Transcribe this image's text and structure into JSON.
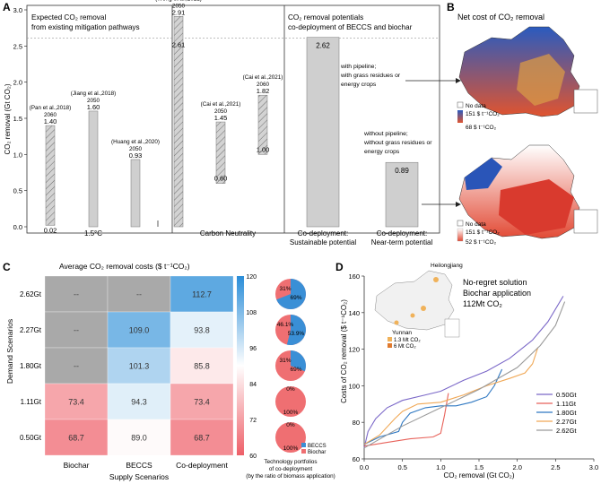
{
  "panel_labels": {
    "a": "A",
    "b": "B",
    "c": "C",
    "d": "D"
  },
  "panel_a": {
    "left_title_line1": "Expected CO₂ removal",
    "left_title_line2": "from existing mitigation pathways",
    "right_title_line1": "CO₂ removal potentials",
    "right_title_line2": "co-deployment of BECCS and biochar",
    "ylabel": "CO₂ removal (Gt CO₂)",
    "group_labels": [
      "1.5°C",
      "Carbon Neutrality",
      "Co-deployment:",
      "Sustainable potential",
      "Co-deployment:",
      "Near-term potential"
    ],
    "annotations": [
      {
        "text": "with pipeline;"
      },
      {
        "text": "with grass residues or"
      },
      {
        "text": "energy crops"
      },
      {
        "text": "without pipeline;"
      },
      {
        "text": "without grass residues or"
      },
      {
        "text": "energy crops"
      }
    ],
    "dashed_line_value": 2.61
  },
  "panel_b": {
    "title": "Net cost of CO₂ removal",
    "legend_top": [
      "No data",
      "151 $ t⁻¹CO₂",
      "68 $ t⁻¹CO₂"
    ],
    "legend_bottom": [
      "No data",
      "151 $ t⁻¹CO₂",
      "52 $ t⁻¹CO₂"
    ]
  },
  "panel_c": {
    "title": "Average CO₂ removal costs ($ t⁻¹CO₂)",
    "ylabel": "Demand Scenarios",
    "xlabel": "Supply Scenarios",
    "colorbar_ticks": [
      "120",
      "108",
      "96",
      "84",
      "72",
      "60"
    ],
    "pie_legend": [
      "BECCS",
      "Biochar"
    ],
    "pie_caption_line1": "Technology portfolios",
    "pie_caption_line2": "of co-deployment",
    "pie_caption_line3": "(by the ratio of biomass application)"
  },
  "panel_d": {
    "ylabel": "Costs of CO₂ removal ($ t⁻¹CO₂)",
    "xlabel": "CO₂ removal (Gt CO₂)",
    "inset_heilongjiang": "Heilongjiang",
    "inset_yunnan": "Yunnan",
    "inset_legend": [
      "1.3 Mt CO₂",
      "6 Mt CO₂"
    ],
    "noregret_line1": "No-regret solution",
    "noregret_line2": "Biochar application",
    "noregret_line3": "112Mt CO₂"
  },
  "colors": {
    "bar_gray": "#cfcfcf",
    "heat_gray": "#a9a9a9",
    "beccs": "#3a8fd6",
    "biochar": "#ef6f72",
    "line_050": "#7b68c8",
    "line_111": "#e8625a",
    "line_180": "#2f78c2",
    "line_227": "#f0a856",
    "line_262": "#9a9a9a"
  },
  "chart_data": [
    {
      "type": "bar",
      "id": "A",
      "ylabel": "CO₂ removal (Gt CO₂)",
      "ylim": [
        0,
        3.0
      ],
      "yticks": [
        0.0,
        0.5,
        1.0,
        1.5,
        2.0,
        2.5,
        3.0
      ],
      "bars": [
        {
          "label": "(Pan et al.,2018)",
          "year": "2060",
          "low": 0.02,
          "high": 1.4,
          "hatched": true,
          "low_label": "0.02",
          "high_label": "1.40"
        },
        {
          "label": "(Jiang et al.,2018)",
          "year": "2050",
          "low": 0.0,
          "high": 1.6,
          "hatched": false,
          "low_label": "",
          "high_label": "1.60"
        },
        {
          "label": "(Huang et al.,2020)",
          "year": "2050",
          "low": 0.0,
          "high": 0.93,
          "hatched": false,
          "low_label": "",
          "high_label": "0.93"
        },
        {
          "label": "(Weng et al.,2021)",
          "year": "2050",
          "low": 0.0,
          "high": 2.91,
          "hatched": true,
          "low_label": "",
          "high_label": "2.91",
          "mid_label": "2.61"
        },
        {
          "label": "(Cai et al.,2021)",
          "year": "2050",
          "low": 0.6,
          "high": 1.45,
          "hatched": true,
          "low_label": "0.60",
          "high_label": "1.45"
        },
        {
          "label": "(Cai et al.,2021)",
          "year": "2060",
          "low": 1.0,
          "high": 1.82,
          "hatched": true,
          "low_label": "1.00",
          "high_label": "1.82"
        },
        {
          "label": "",
          "year": "",
          "low": 0.0,
          "high": 2.62,
          "hatched": false,
          "low_label": "",
          "high_label": "2.62",
          "inside": true
        },
        {
          "label": "",
          "year": "",
          "low": 0.0,
          "high": 0.89,
          "hatched": false,
          "low_label": "",
          "high_label": "0.89",
          "inside": true
        }
      ]
    },
    {
      "type": "heatmap",
      "id": "C",
      "rows": [
        "2.62Gt",
        "2.27Gt",
        "1.80Gt",
        "1.11Gt",
        "0.50Gt"
      ],
      "columns": [
        "Biochar",
        "BECCS",
        "Co-deployment"
      ],
      "values": [
        [
          null,
          null,
          112.7
        ],
        [
          null,
          109.0,
          93.8
        ],
        [
          null,
          101.3,
          85.8
        ],
        [
          73.4,
          94.3,
          73.4
        ],
        [
          68.7,
          89.0,
          68.7
        ]
      ],
      "na_label": "--",
      "colorbar": {
        "min": 60,
        "max": 120
      }
    },
    {
      "type": "pie",
      "id": "C-pies",
      "series": [
        "BECCS",
        "Biochar"
      ],
      "pies": [
        {
          "beccs": 69,
          "biochar": 31,
          "labels": [
            "31%",
            "69%"
          ]
        },
        {
          "beccs": 53.9,
          "biochar": 46.1,
          "labels": [
            "46.1%",
            "53.9%"
          ]
        },
        {
          "beccs": 31,
          "biochar": 69,
          "labels": [
            "31%",
            "69%"
          ]
        },
        {
          "beccs": 0,
          "biochar": 100,
          "labels": [
            "0%",
            "100%"
          ]
        },
        {
          "beccs": 0,
          "biochar": 100,
          "labels": [
            "0%",
            "100%"
          ]
        }
      ]
    },
    {
      "type": "line",
      "id": "D",
      "xlabel": "CO₂ removal (Gt CO₂)",
      "ylabel": "Costs of CO₂ removal ($ t⁻¹CO₂)",
      "xlim": [
        0,
        3.0
      ],
      "ylim": [
        60,
        160
      ],
      "xticks": [
        0.0,
        0.5,
        1.0,
        1.5,
        2.0,
        2.5,
        3.0
      ],
      "yticks": [
        60,
        80,
        100,
        120,
        140,
        160
      ],
      "series": [
        {
          "name": "0.50Gt",
          "color": "#7b68c8",
          "points": [
            [
              0.0,
              66
            ],
            [
              0.05,
              75
            ],
            [
              0.15,
              82
            ],
            [
              0.3,
              88
            ],
            [
              0.5,
              92
            ],
            [
              0.8,
              95
            ],
            [
              1.0,
              97
            ],
            [
              1.1,
              99
            ],
            [
              1.3,
              103
            ],
            [
              1.6,
              108
            ],
            [
              1.9,
              115
            ],
            [
              2.2,
              125
            ],
            [
              2.4,
              135
            ],
            [
              2.6,
              149
            ]
          ]
        },
        {
          "name": "1.11Gt",
          "color": "#e8625a",
          "points": [
            [
              0.0,
              67
            ],
            [
              0.3,
              69
            ],
            [
              0.6,
              71
            ],
            [
              0.9,
              72
            ],
            [
              1.0,
              74
            ],
            [
              1.05,
              84
            ],
            [
              1.1,
              96
            ]
          ]
        },
        {
          "name": "1.80Gt",
          "color": "#2f78c2",
          "points": [
            [
              0.0,
              68
            ],
            [
              0.2,
              72
            ],
            [
              0.45,
              75
            ],
            [
              0.5,
              80
            ],
            [
              0.6,
              85
            ],
            [
              0.8,
              88
            ],
            [
              1.0,
              89
            ],
            [
              1.2,
              89
            ],
            [
              1.4,
              91
            ],
            [
              1.6,
              94
            ],
            [
              1.7,
              100
            ],
            [
              1.8,
              109
            ]
          ]
        },
        {
          "name": "2.27Gt",
          "color": "#f0a856",
          "points": [
            [
              0.0,
              68
            ],
            [
              0.2,
              73
            ],
            [
              0.4,
              82
            ],
            [
              0.5,
              86
            ],
            [
              0.7,
              90
            ],
            [
              1.0,
              91
            ],
            [
              1.3,
              95
            ],
            [
              1.6,
              100
            ],
            [
              1.9,
              104
            ],
            [
              2.1,
              107
            ],
            [
              2.2,
              112
            ],
            [
              2.27,
              121
            ]
          ]
        },
        {
          "name": "2.62Gt",
          "color": "#9a9a9a",
          "points": [
            [
              0.0,
              66
            ],
            [
              0.5,
              78
            ],
            [
              1.0,
              88
            ],
            [
              1.5,
              98
            ],
            [
              2.0,
              110
            ],
            [
              2.3,
              122
            ],
            [
              2.5,
              133
            ],
            [
              2.62,
              146
            ]
          ]
        }
      ]
    }
  ]
}
